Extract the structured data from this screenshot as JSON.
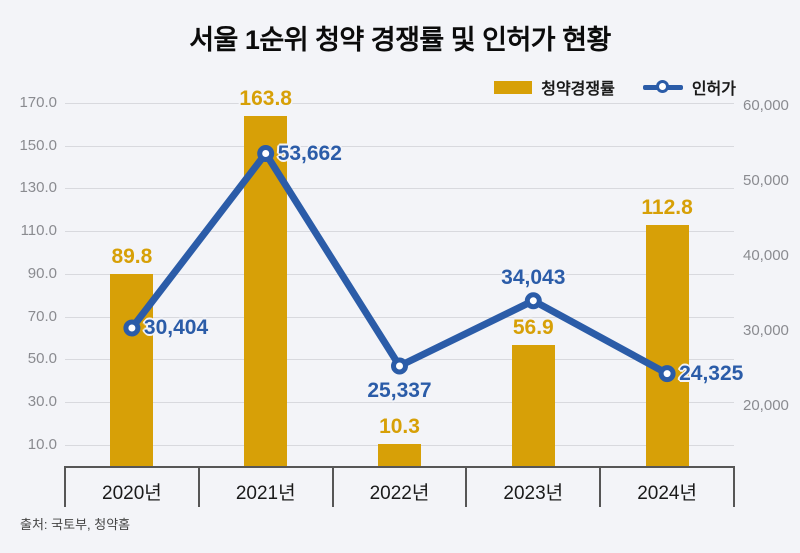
{
  "title": "서울 1순위 청약 경쟁률 및 인허가 현황",
  "source": "출처: 국토부, 청약홈",
  "legend": {
    "bar_label": "청약경쟁률",
    "line_label": "인허가"
  },
  "colors": {
    "background": "#F3F4F8",
    "bar": "#D7A007",
    "bar_label": "#D7A007",
    "line": "#2B5CA8",
    "line_label": "#2B5CA8",
    "grid": "#D8D9DE",
    "axis": "#565656",
    "tick_text": "#8A8B90",
    "category_text": "#1A1A1A"
  },
  "chart_data": {
    "type": "bar",
    "subtype": "combo-bar-line-dual-axis",
    "title": "서울 1순위 청약 경쟁률 및 인허가 현황",
    "categories": [
      "2020년",
      "2021년",
      "2022년",
      "2023년",
      "2024년"
    ],
    "series": [
      {
        "name": "청약경쟁률",
        "type": "bar",
        "axis": "left",
        "values": [
          89.8,
          163.8,
          10.3,
          56.9,
          112.8
        ],
        "labels": [
          "89.8",
          "163.8",
          "10.3",
          "56.9",
          "112.8"
        ]
      },
      {
        "name": "인허가",
        "type": "line",
        "axis": "right",
        "values": [
          30404,
          53662,
          25337,
          34043,
          24325
        ],
        "labels": [
          "30,404",
          "53,662",
          "25,337",
          "34,043",
          "24,325"
        ],
        "label_pos": [
          "right",
          "right",
          "below",
          "above",
          "right"
        ]
      }
    ],
    "left_axis": {
      "ticks": [
        170,
        150,
        130,
        110,
        90,
        70,
        50,
        30,
        10
      ],
      "tick_labels": [
        "170.0",
        "150.0",
        "130.0",
        "110.0",
        "90.0",
        "70.0",
        "50.0",
        "30.0",
        "10.0"
      ],
      "range_bottom": 0
    },
    "right_axis": {
      "ticks": [
        60000,
        50000,
        40000,
        30000,
        20000
      ],
      "tick_labels": [
        "60,000",
        "50,000",
        "40,000",
        "30,000",
        "20,000"
      ]
    },
    "grid": true,
    "legend_position": "top-right",
    "xlabel": "",
    "ylabel": ""
  }
}
